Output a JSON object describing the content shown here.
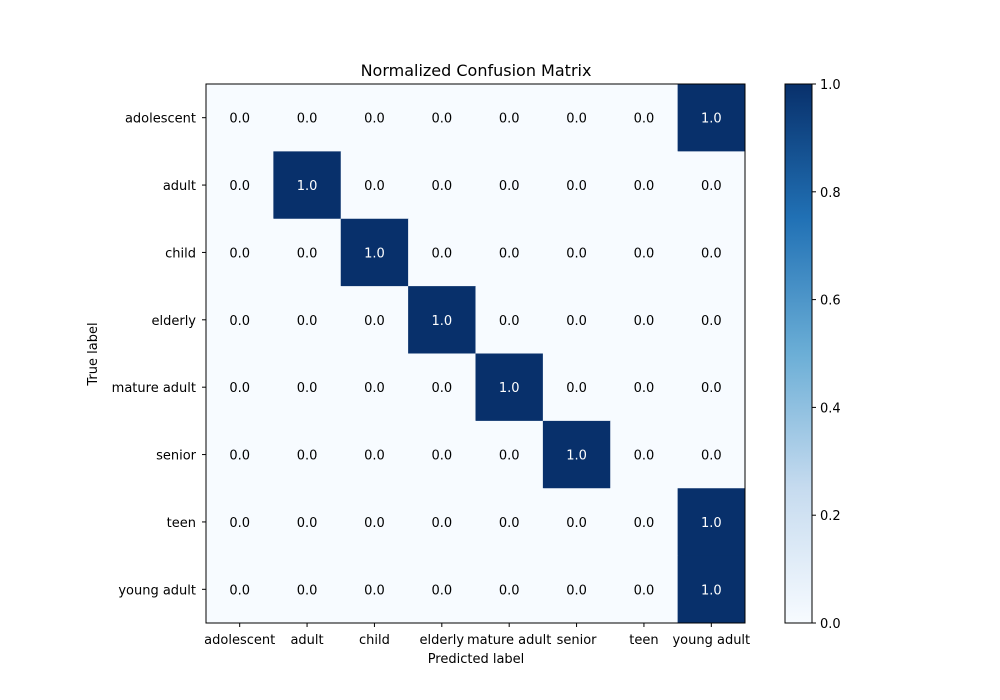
{
  "chart_data": {
    "type": "heatmap",
    "title": "Normalized Confusion Matrix",
    "xlabel": "Predicted label",
    "ylabel": "True label",
    "x_categories": [
      "adolescent",
      "adult",
      "child",
      "elderly",
      "mature adult",
      "senior",
      "teen",
      "young adult"
    ],
    "y_categories": [
      "adolescent",
      "adult",
      "child",
      "elderly",
      "mature adult",
      "senior",
      "teen",
      "young adult"
    ],
    "values": [
      [
        0.0,
        0.0,
        0.0,
        0.0,
        0.0,
        0.0,
        0.0,
        1.0
      ],
      [
        0.0,
        1.0,
        0.0,
        0.0,
        0.0,
        0.0,
        0.0,
        0.0
      ],
      [
        0.0,
        0.0,
        1.0,
        0.0,
        0.0,
        0.0,
        0.0,
        0.0
      ],
      [
        0.0,
        0.0,
        0.0,
        1.0,
        0.0,
        0.0,
        0.0,
        0.0
      ],
      [
        0.0,
        0.0,
        0.0,
        0.0,
        1.0,
        0.0,
        0.0,
        0.0
      ],
      [
        0.0,
        0.0,
        0.0,
        0.0,
        0.0,
        1.0,
        0.0,
        0.0
      ],
      [
        0.0,
        0.0,
        0.0,
        0.0,
        0.0,
        0.0,
        0.0,
        1.0
      ],
      [
        0.0,
        0.0,
        0.0,
        0.0,
        0.0,
        0.0,
        0.0,
        1.0
      ]
    ],
    "value_range": [
      0.0,
      1.0
    ],
    "colorbar_ticks": [
      "0.0",
      "0.2",
      "0.4",
      "0.6",
      "0.8",
      "1.0"
    ],
    "colormap": {
      "low": "#f7fbff",
      "high": "#08306b"
    },
    "grid": false
  }
}
